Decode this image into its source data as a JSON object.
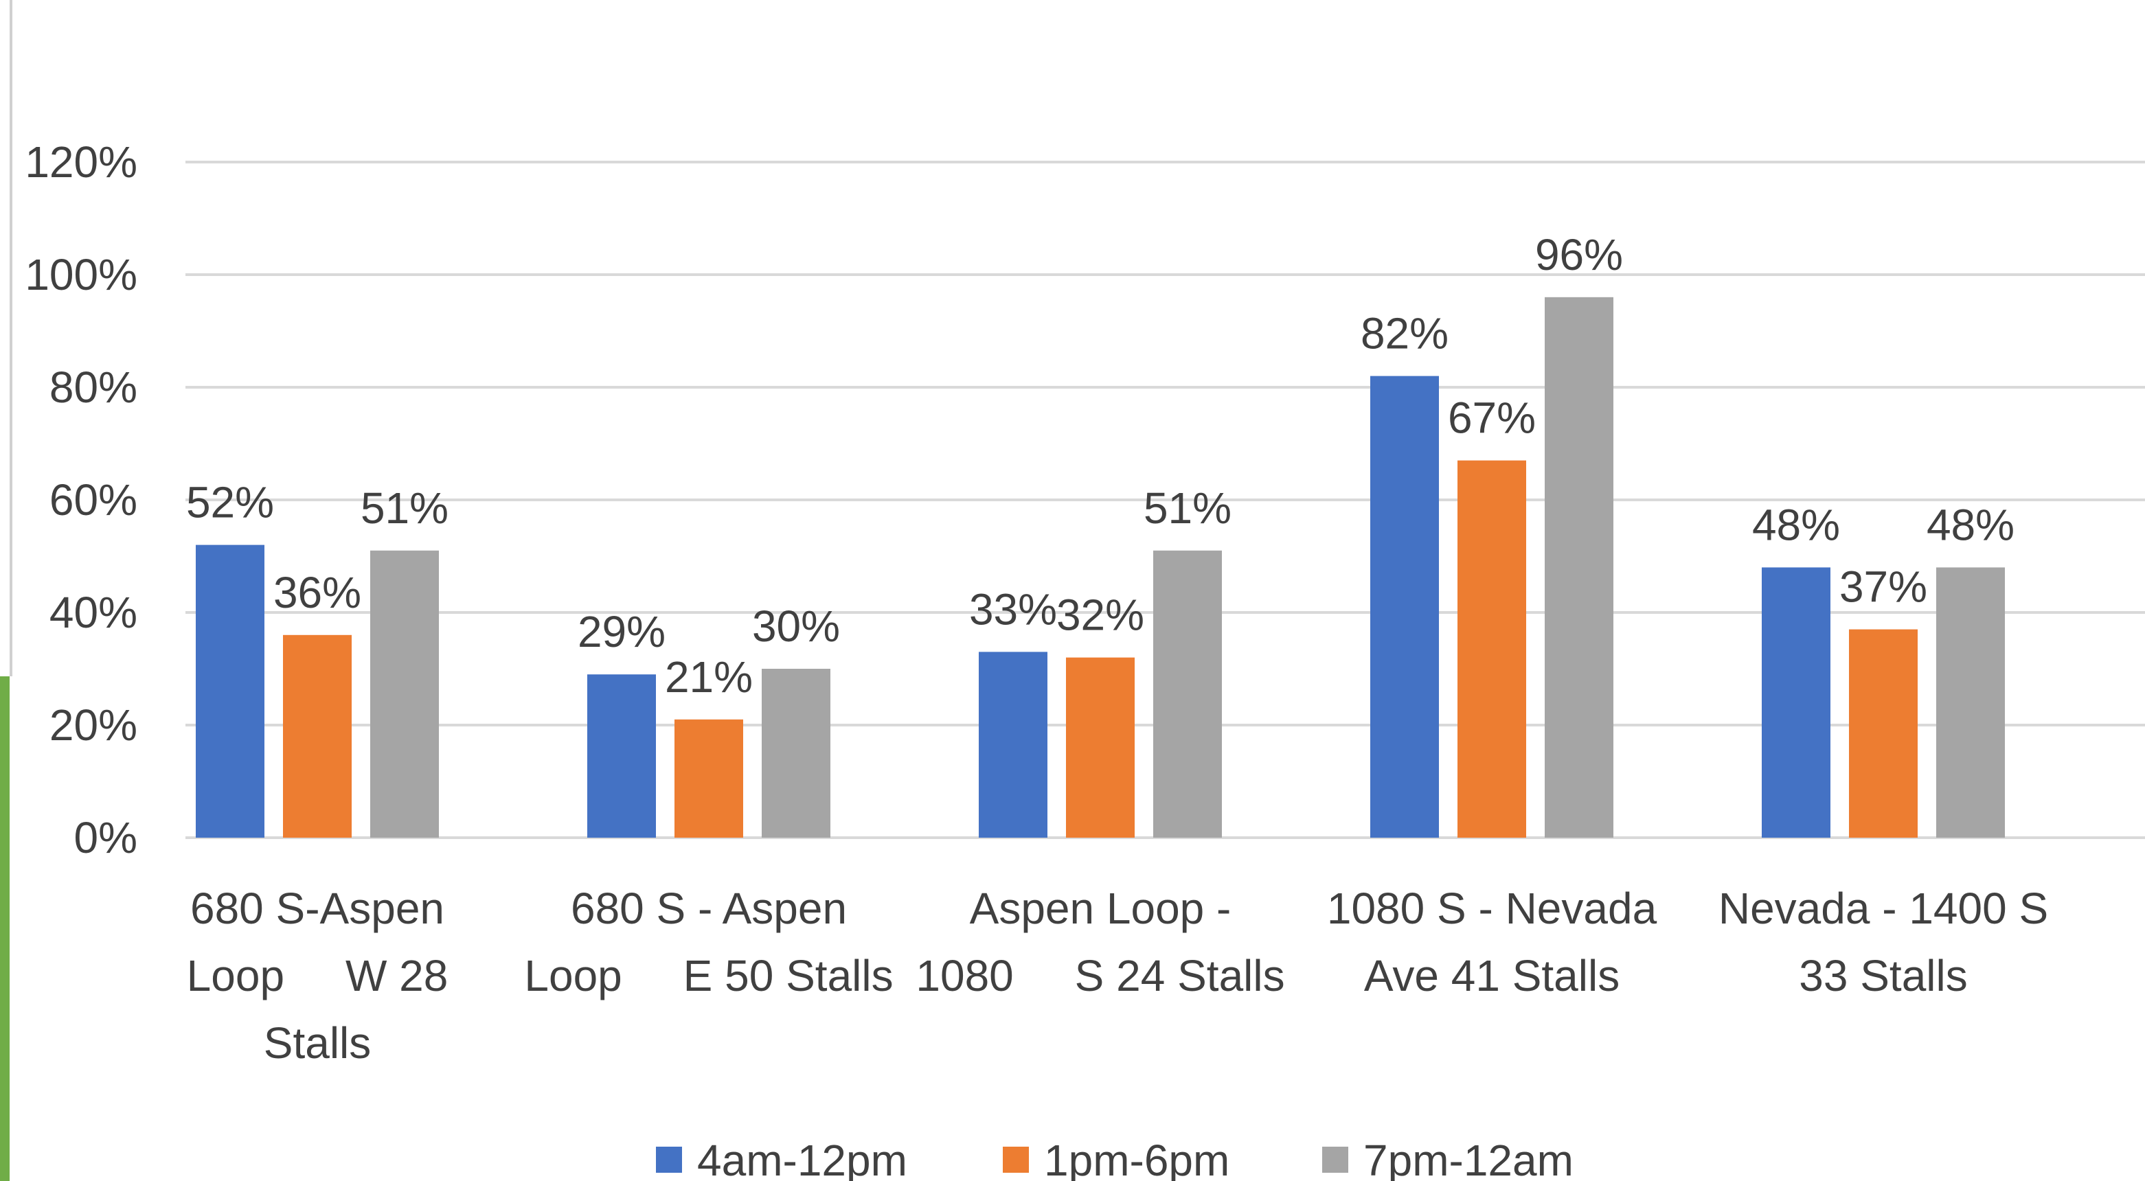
{
  "chart_data": {
    "type": "bar",
    "title": "",
    "xlabel": "",
    "ylabel": "",
    "ylim": [
      0,
      1.2
    ],
    "yticks": [
      "0%",
      "20%",
      "40%",
      "60%",
      "80%",
      "100%",
      "120%"
    ],
    "grid": true,
    "legend_position": "bottom",
    "categories": [
      [
        "680 S-Aspen",
        "Loop     W 28",
        "Stalls"
      ],
      [
        "680 S - Aspen",
        "Loop     E 50 Stalls"
      ],
      [
        "Aspen Loop -",
        "1080     S 24 Stalls"
      ],
      [
        "1080 S - Nevada",
        "Ave 41 Stalls"
      ],
      [
        "Nevada - 1400 S",
        "33 Stalls"
      ]
    ],
    "series": [
      {
        "name": "4am-12pm",
        "color": "#4472C4",
        "values": [
          0.52,
          0.29,
          0.33,
          0.82,
          0.48
        ],
        "labels": [
          "52%",
          "29%",
          "33%",
          "82%",
          "48%"
        ]
      },
      {
        "name": "1pm-6pm",
        "color": "#ED7D31",
        "values": [
          0.36,
          0.21,
          0.32,
          0.67,
          0.37
        ],
        "labels": [
          "36%",
          "21%",
          "32%",
          "67%",
          "37%"
        ]
      },
      {
        "name": "7pm-12am",
        "color": "#A5A5A5",
        "values": [
          0.51,
          0.3,
          0.51,
          0.96,
          0.48
        ],
        "labels": [
          "51%",
          "30%",
          "51%",
          "96%",
          "48%"
        ]
      }
    ]
  },
  "colors": {
    "gridline": "#D9D9D9",
    "left_border": "#D0D0D0",
    "left_accent": "#70AD47"
  }
}
